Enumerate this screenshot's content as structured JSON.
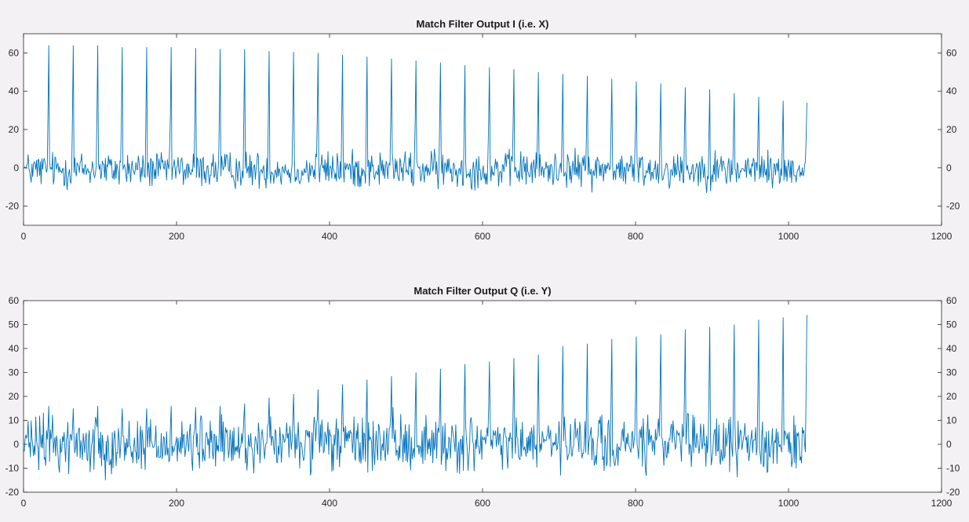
{
  "figure": {
    "background": "#f4f1f4",
    "axes_color": "#262626",
    "line_color": "#0072bd"
  },
  "chart_data": [
    {
      "type": "line",
      "title": "Match Filter Output I (i.e. X)",
      "xlabel": "",
      "ylabel": "",
      "xlim": [
        0,
        1200
      ],
      "ylim": [
        -30,
        70
      ],
      "xticks": [
        0,
        200,
        400,
        600,
        800,
        1000,
        1200
      ],
      "yticks": [
        -20,
        0,
        20,
        40,
        60
      ],
      "grid": false,
      "series": [
        {
          "color": "#0072bd",
          "n_points": 1024,
          "noise_range": [
            -15,
            13
          ],
          "peaks": {
            "x": [
              33,
              65,
              97,
              129,
              161,
              193,
              225,
              257,
              289,
              321,
              353,
              385,
              417,
              449,
              481,
              513,
              545,
              577,
              609,
              641,
              673,
              705,
              737,
              769,
              801,
              833,
              865,
              897,
              929,
              961,
              993,
              1024
            ],
            "y": [
              64,
              64,
              64,
              63,
              63,
              63,
              62.5,
              62,
              62,
              61,
              60.5,
              60,
              59,
              58,
              57,
              56,
              55,
              53.5,
              52.5,
              51.5,
              50,
              49,
              48,
              46.5,
              45,
              44,
              42,
              41,
              39,
              37,
              35,
              34
            ]
          }
        }
      ]
    },
    {
      "type": "line",
      "title": "Match Filter Output Q (i.e. Y)",
      "xlabel": "",
      "ylabel": "",
      "xlim": [
        0,
        1200
      ],
      "ylim": [
        -20,
        60
      ],
      "xticks": [
        0,
        200,
        400,
        600,
        800,
        1000,
        1200
      ],
      "yticks": [
        -20,
        -10,
        0,
        10,
        20,
        30,
        40,
        50,
        60
      ],
      "grid": false,
      "series": [
        {
          "color": "#0072bd",
          "n_points": 1024,
          "noise_range": [
            -17,
            17
          ],
          "peaks": {
            "x": [
              33,
              65,
              97,
              129,
              161,
              193,
              225,
              257,
              289,
              321,
              353,
              385,
              417,
              449,
              481,
              513,
              545,
              577,
              609,
              641,
              673,
              705,
              737,
              769,
              801,
              833,
              865,
              897,
              929,
              961,
              993,
              1024
            ],
            "y": [
              16,
              15,
              16,
              15,
              15,
              16,
              15.5,
              16,
              17,
              19.5,
              21,
              23,
              25,
              27,
              28.5,
              30,
              31.5,
              33.5,
              34.5,
              36,
              37.5,
              41,
              42,
              44,
              45,
              46,
              48,
              49,
              50,
              52,
              53,
              54
            ]
          }
        }
      ]
    }
  ]
}
